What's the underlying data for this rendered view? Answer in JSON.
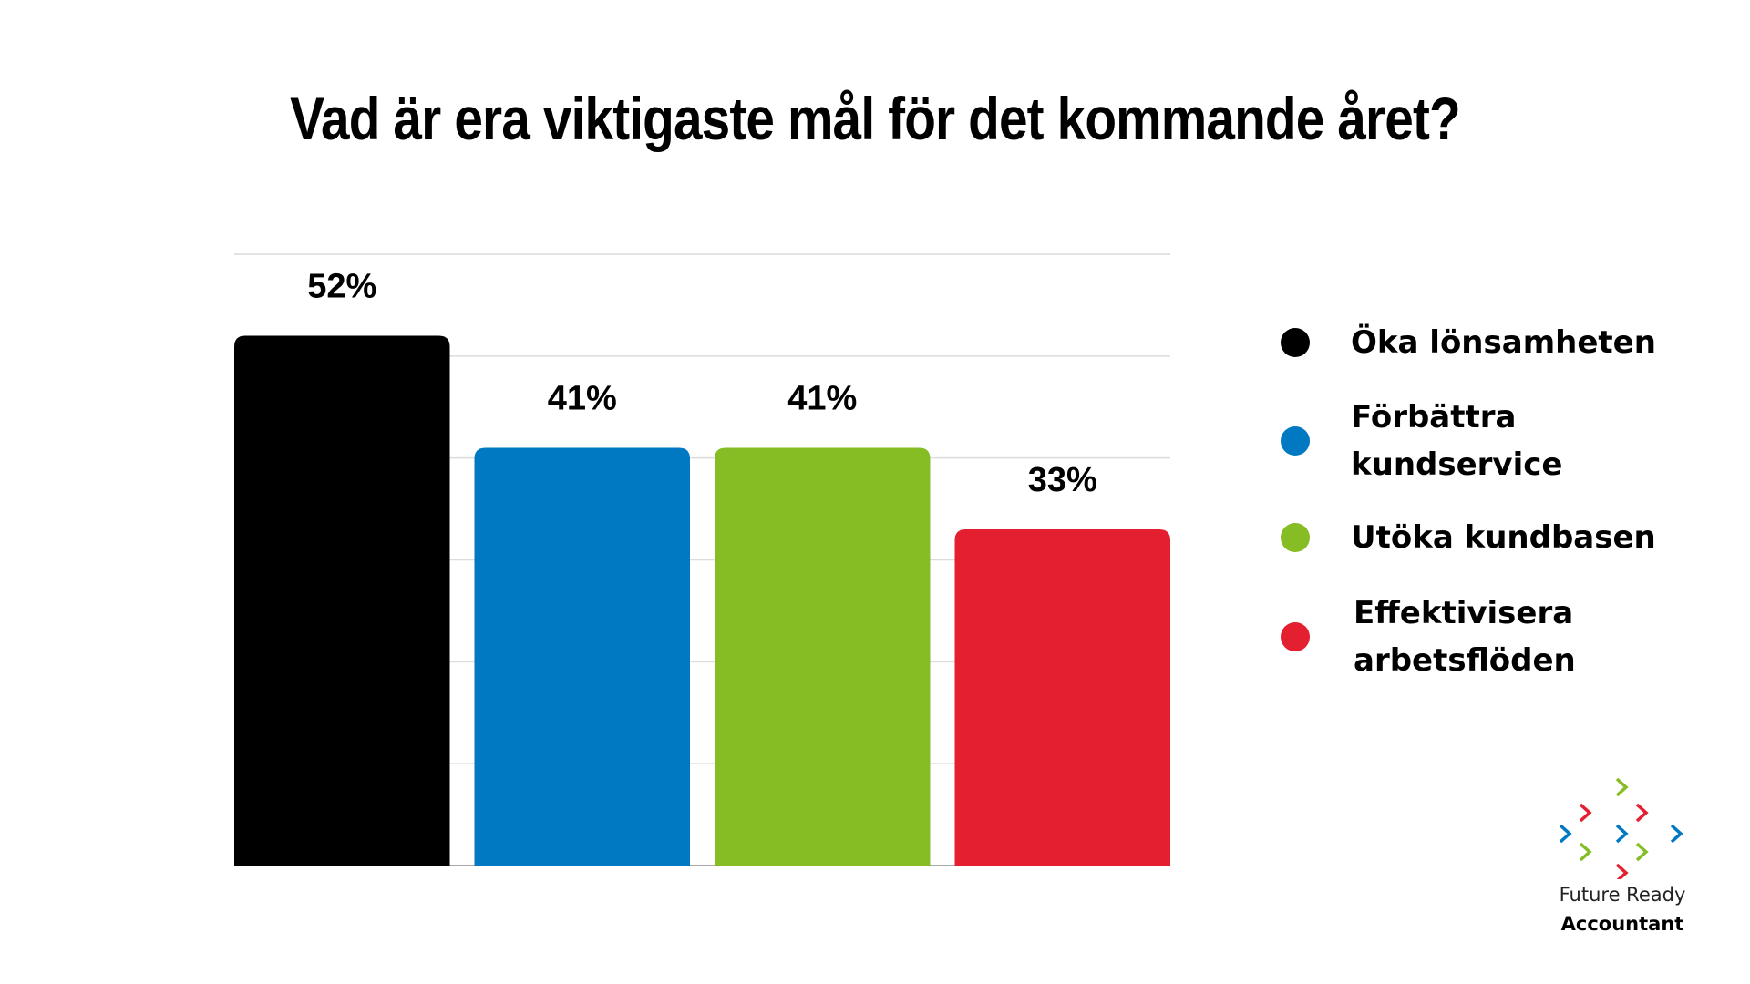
{
  "title": "Vad är era viktigaste mål för det kommande året?",
  "chart_data": {
    "type": "bar",
    "title": "Vad är era viktigaste mål för det kommande året?",
    "categories": [
      "Öka lönsamheten",
      "Förbättra kundservice",
      "Utöka kundbasen",
      "Effektivisera arbetsflöden"
    ],
    "values": [
      52,
      41,
      41,
      33
    ],
    "value_labels": [
      "52%",
      "41%",
      "41%",
      "33%"
    ],
    "colors": [
      "#000000",
      "#0079C2",
      "#86BC24",
      "#E42030"
    ],
    "xlabel": "",
    "ylabel": "",
    "ylim": [
      0,
      60
    ],
    "gridlines": [
      0,
      10,
      20,
      30,
      40,
      50,
      60
    ],
    "grid": true,
    "legend_position": "right",
    "unit": "%"
  },
  "legend": [
    {
      "label": "Öka lönsamheten",
      "color": "#000000"
    },
    {
      "label": "Förbättra kundservice",
      "color": "#0079C2"
    },
    {
      "label": "Utöka kundbasen",
      "color": "#86BC24"
    },
    {
      "label": "Effektivisera arbetsflöden",
      "color": "#E42030"
    }
  ],
  "logo": {
    "line1": "Future Ready",
    "line2": "Accountant",
    "colors": {
      "green": "#86BC24",
      "red": "#E42030",
      "blue": "#0079C2"
    }
  }
}
